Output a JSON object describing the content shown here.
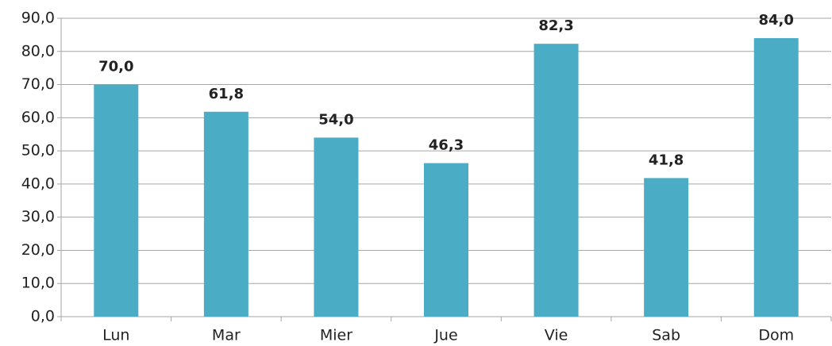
{
  "chart_data": {
    "type": "bar",
    "categories": [
      "Lun",
      "Mar",
      "Mier",
      "Jue",
      "Vie",
      "Sab",
      "Dom"
    ],
    "values": [
      70.0,
      61.8,
      54.0,
      46.3,
      82.3,
      41.8,
      84.0
    ],
    "value_labels": [
      "70,0",
      "61,8",
      "54,0",
      "46,3",
      "82,3",
      "41,8",
      "84,0"
    ],
    "color": "#4bacc6",
    "ylim": [
      0,
      90
    ],
    "yticks": [
      {
        "value": 0,
        "label": "0,0"
      },
      {
        "value": 10,
        "label": "10,0"
      },
      {
        "value": 20,
        "label": "20,0"
      },
      {
        "value": 30,
        "label": "30,0"
      },
      {
        "value": 40,
        "label": "40,0"
      },
      {
        "value": 50,
        "label": "50,0"
      },
      {
        "value": 60,
        "label": "60,0"
      },
      {
        "value": 70,
        "label": "70,0"
      },
      {
        "value": 80,
        "label": "80,0"
      },
      {
        "value": 90,
        "label": "90,0"
      }
    ],
    "grid": true
  }
}
